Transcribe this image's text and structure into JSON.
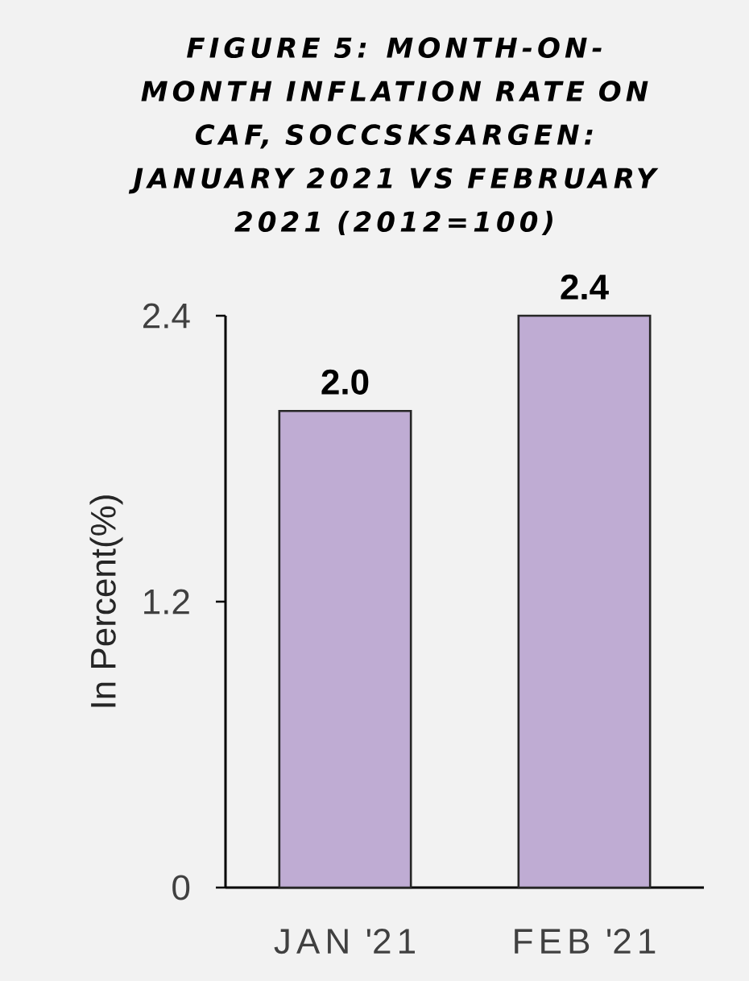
{
  "chart_data": {
    "type": "bar",
    "title": "FIGURE 5: MONTH-ON-MONTH INFLATION RATE ON CAF, SOCCSKSARGEN: JANUARY 2021 VS FEBRUARY 2021 (2012=100)",
    "ylabel": "In Percent(%)",
    "categories": [
      "JAN '21",
      "FEB '21"
    ],
    "values": [
      2.0,
      2.4
    ],
    "value_labels": [
      "2.0",
      "2.4"
    ],
    "color": "#bfacd3",
    "ylim": [
      0,
      2.4
    ],
    "yticks": [
      0,
      1.2,
      2.4
    ]
  }
}
